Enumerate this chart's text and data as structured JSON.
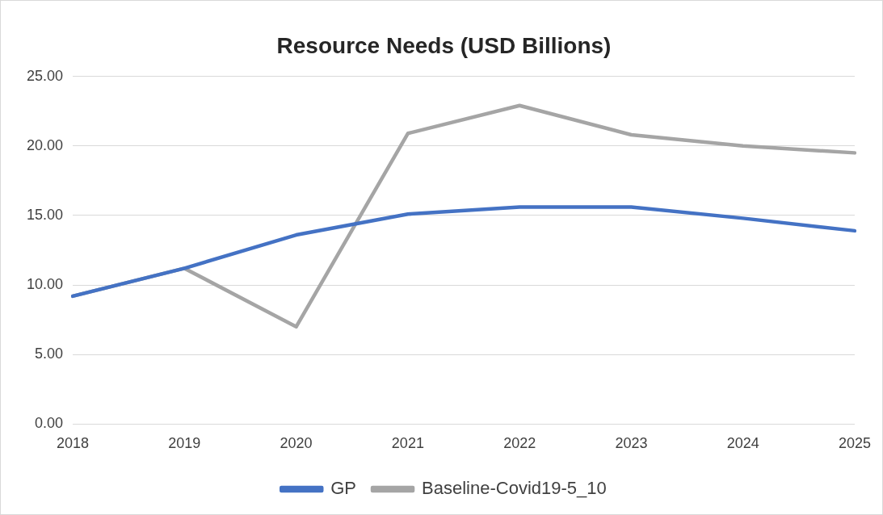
{
  "chart_data": {
    "type": "line",
    "title": "Resource Needs (USD Billions)",
    "categories": [
      "2018",
      "2019",
      "2020",
      "2021",
      "2022",
      "2023",
      "2024",
      "2025"
    ],
    "series": [
      {
        "name": "GP",
        "color": "#4472c4",
        "values": [
          9.2,
          11.2,
          13.6,
          15.1,
          15.6,
          15.6,
          14.8,
          13.9
        ]
      },
      {
        "name": "Baseline-Covid19-5_10",
        "color": "#a5a5a5",
        "values": [
          9.2,
          11.2,
          7.0,
          20.9,
          22.9,
          20.8,
          20.0,
          19.5
        ]
      }
    ],
    "ylim": [
      0,
      25
    ],
    "yticks": [
      {
        "value": 0,
        "label": "0.00"
      },
      {
        "value": 5,
        "label": "5.00"
      },
      {
        "value": 10,
        "label": "10.00"
      },
      {
        "value": 15,
        "label": "15.00"
      },
      {
        "value": 20,
        "label": "20.00"
      },
      {
        "value": 25,
        "label": "25.00"
      }
    ],
    "grid": "y",
    "legend": "bottom",
    "marker": "none"
  }
}
